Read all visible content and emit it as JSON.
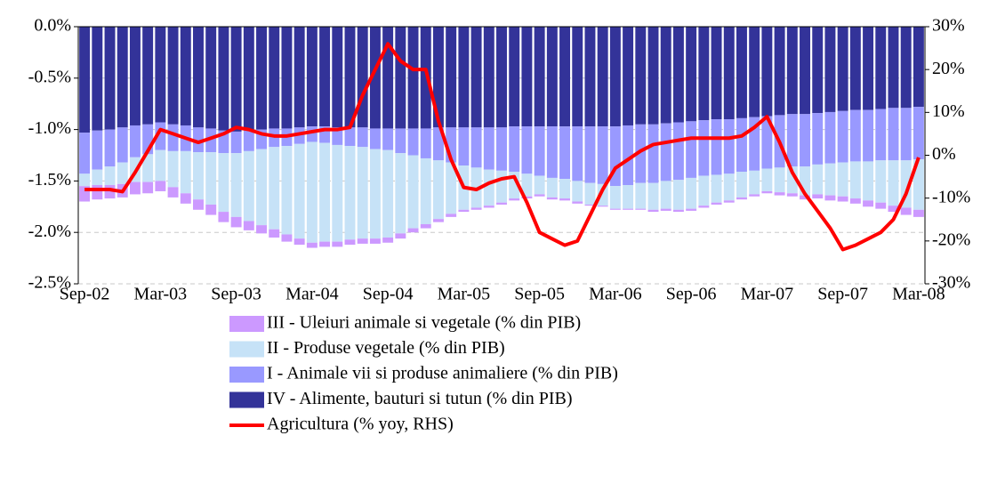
{
  "chart_data": {
    "type": "bar",
    "categories": [
      "Sep-02",
      null,
      null,
      null,
      null,
      null,
      "Mar-03",
      null,
      null,
      null,
      null,
      null,
      "Sep-03",
      null,
      null,
      null,
      null,
      null,
      "Mar-04",
      null,
      null,
      null,
      null,
      null,
      "Sep-04",
      null,
      null,
      null,
      null,
      null,
      "Mar-05",
      null,
      null,
      null,
      null,
      null,
      "Sep-05",
      null,
      null,
      null,
      null,
      null,
      "Mar-06",
      null,
      null,
      null,
      null,
      null,
      "Sep-06",
      null,
      null,
      null,
      null,
      null,
      "Mar-07",
      null,
      null,
      null,
      null,
      null,
      "Sep-07",
      null,
      null,
      null,
      null,
      null,
      "Mar-08"
    ],
    "series": [
      {
        "name": "III - Uleiuri animale si vegetale (% din PIB)",
        "color": "#cc99ff",
        "values": [
          -0.15,
          -0.14,
          -0.13,
          -0.13,
          -0.12,
          -0.11,
          -0.1,
          -0.1,
          -0.1,
          -0.1,
          -0.1,
          -0.1,
          -0.1,
          -0.09,
          -0.08,
          -0.08,
          -0.07,
          -0.06,
          -0.05,
          -0.05,
          -0.05,
          -0.05,
          -0.05,
          -0.05,
          -0.05,
          -0.05,
          -0.04,
          -0.04,
          -0.03,
          -0.03,
          -0.02,
          -0.02,
          -0.02,
          -0.02,
          -0.02,
          -0.02,
          -0.02,
          -0.02,
          -0.02,
          -0.02,
          -0.01,
          -0.01,
          -0.01,
          -0.01,
          -0.01,
          -0.02,
          -0.02,
          -0.02,
          -0.02,
          -0.02,
          -0.02,
          -0.02,
          -0.02,
          -0.02,
          -0.02,
          -0.03,
          -0.03,
          -0.04,
          -0.04,
          -0.05,
          -0.05,
          -0.05,
          -0.06,
          -0.06,
          -0.06,
          -0.07,
          -0.07
        ]
      },
      {
        "name": "II - Produse vegetale (% din PIB)",
        "color": "#c6e2f7",
        "values": [
          -0.12,
          -0.15,
          -0.18,
          -0.21,
          -0.24,
          -0.27,
          -0.3,
          -0.35,
          -0.41,
          -0.46,
          -0.51,
          -0.57,
          -0.62,
          -0.68,
          -0.74,
          -0.8,
          -0.86,
          -0.92,
          -0.98,
          -0.96,
          -0.94,
          -0.91,
          -0.89,
          -0.87,
          -0.85,
          -0.78,
          -0.71,
          -0.64,
          -0.57,
          -0.5,
          -0.43,
          -0.39,
          -0.35,
          -0.31,
          -0.26,
          -0.22,
          -0.18,
          -0.19,
          -0.19,
          -0.2,
          -0.21,
          -0.21,
          -0.22,
          -0.23,
          -0.25,
          -0.26,
          -0.27,
          -0.29,
          -0.3,
          -0.29,
          -0.27,
          -0.26,
          -0.25,
          -0.23,
          -0.22,
          -0.24,
          -0.26,
          -0.28,
          -0.29,
          -0.31,
          -0.33,
          -0.36,
          -0.38,
          -0.41,
          -0.44,
          -0.46,
          -0.49
        ]
      },
      {
        "name": "I - Animale vii  si produse animaliere (% din PIB)",
        "color": "#9999ff",
        "values": [
          -0.4,
          -0.38,
          -0.36,
          -0.34,
          -0.31,
          -0.29,
          -0.27,
          -0.26,
          -0.25,
          -0.24,
          -0.23,
          -0.22,
          -0.21,
          -0.2,
          -0.19,
          -0.18,
          -0.17,
          -0.16,
          -0.15,
          -0.16,
          -0.17,
          -0.18,
          -0.19,
          -0.2,
          -0.21,
          -0.24,
          -0.26,
          -0.29,
          -0.32,
          -0.34,
          -0.37,
          -0.39,
          -0.41,
          -0.42,
          -0.44,
          -0.46,
          -0.48,
          -0.5,
          -0.51,
          -0.53,
          -0.55,
          -0.56,
          -0.58,
          -0.58,
          -0.57,
          -0.57,
          -0.56,
          -0.56,
          -0.55,
          -0.54,
          -0.54,
          -0.53,
          -0.52,
          -0.52,
          -0.51,
          -0.51,
          -0.51,
          -0.51,
          -0.5,
          -0.5,
          -0.5,
          -0.5,
          -0.5,
          -0.5,
          -0.51,
          -0.51,
          -0.51
        ]
      },
      {
        "name": "IV - Alimente, bauturi si tutun (% din PIB)",
        "color": "#333399",
        "values": [
          -1.03,
          -1.01,
          -1.0,
          -0.98,
          -0.96,
          -0.95,
          -0.93,
          -0.95,
          -0.96,
          -0.98,
          -0.99,
          -1.01,
          -1.02,
          -1.01,
          -1.0,
          -0.99,
          -0.99,
          -0.98,
          -0.97,
          -0.97,
          -0.98,
          -0.98,
          -0.98,
          -0.99,
          -0.99,
          -0.99,
          -0.99,
          -0.99,
          -0.98,
          -0.98,
          -0.98,
          -0.98,
          -0.98,
          -0.98,
          -0.97,
          -0.97,
          -0.97,
          -0.97,
          -0.97,
          -0.97,
          -0.97,
          -0.97,
          -0.97,
          -0.96,
          -0.95,
          -0.95,
          -0.94,
          -0.93,
          -0.92,
          -0.91,
          -0.9,
          -0.9,
          -0.89,
          -0.88,
          -0.87,
          -0.86,
          -0.85,
          -0.85,
          -0.84,
          -0.83,
          -0.82,
          -0.81,
          -0.81,
          -0.8,
          -0.79,
          -0.79,
          -0.78
        ]
      },
      {
        "name": "Agricultura (% yoy, RHS)",
        "color": "#ff0000",
        "type": "line",
        "axis": "y2",
        "values": [
          -8,
          -8,
          -8,
          -8.5,
          -4,
          1,
          6,
          5,
          4,
          3,
          4,
          5,
          6.5,
          6,
          5,
          4.5,
          4.5,
          5,
          5.5,
          6,
          6,
          6.5,
          14,
          20,
          26,
          22,
          20,
          20,
          8,
          -1,
          -7.5,
          -8,
          -6.5,
          -5.5,
          -5,
          -11,
          -18,
          -19.5,
          -21,
          -20,
          -14,
          -8,
          -3,
          -1,
          1,
          2.5,
          3,
          3.5,
          4,
          4,
          4,
          4,
          4.5,
          6.5,
          9,
          3,
          -4,
          -9,
          -13,
          -17,
          -22,
          -21,
          -19.5,
          -18,
          -15,
          -9,
          -0.5
        ]
      }
    ],
    "ylim": [
      -2.5,
      0
    ],
    "yticks": [
      {
        "value": -2.5,
        "label": "-2.5%"
      },
      {
        "value": -2.0,
        "label": "-2.0%"
      },
      {
        "value": -1.5,
        "label": "-1.5%"
      },
      {
        "value": -1.0,
        "label": "-1.0%"
      },
      {
        "value": -0.5,
        "label": "-0.5%"
      },
      {
        "value": 0,
        "label": "0.0%"
      }
    ],
    "y2lim": [
      -30,
      30
    ],
    "y2ticks": [
      {
        "value": -30,
        "label": "-30%"
      },
      {
        "value": -20,
        "label": "-20%"
      },
      {
        "value": -10,
        "label": "-10%"
      },
      {
        "value": 0,
        "label": "0%"
      },
      {
        "value": 10,
        "label": "10%"
      },
      {
        "value": 20,
        "label": "20%"
      },
      {
        "value": 30,
        "label": "30%"
      }
    ],
    "grid": true
  }
}
